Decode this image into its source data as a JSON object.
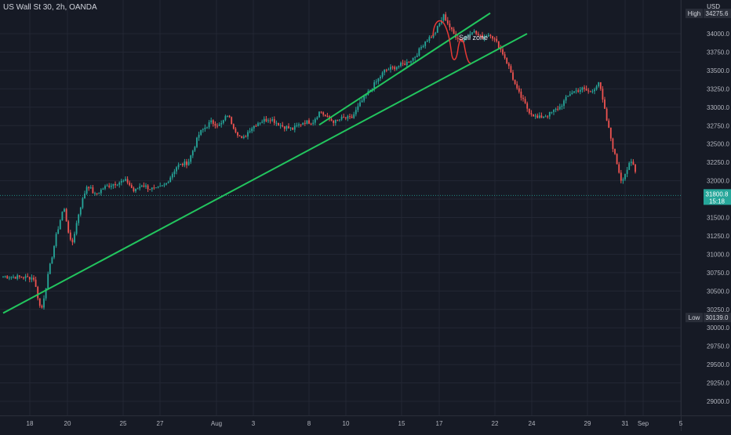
{
  "header": {
    "symbol_title": "US Wall St 30, 2h, OANDA",
    "currency": "USD"
  },
  "annotation": {
    "sell_zone_label": "Sell zone"
  },
  "chart_data": {
    "type": "candlestick",
    "title": "US Wall St 30, 2h, OANDA",
    "currency": "USD",
    "y_ticks": [
      29000,
      29250,
      29500,
      29750,
      30000,
      30250,
      30500,
      30750,
      31000,
      31250,
      31500,
      31750,
      32000,
      32250,
      32500,
      32750,
      33000,
      33250,
      33500,
      33750,
      34000
    ],
    "y_tick_labels": [
      "29000.0",
      "29250.0",
      "29500.0",
      "29750.0",
      "30000.0",
      "30250.0",
      "30500.0",
      "30750.0",
      "31000.0",
      "31250.0",
      "31500.0",
      "31750.0",
      "32000.0",
      "32250.0",
      "32500.0",
      "32750.0",
      "33000.0",
      "33250.0",
      "33500.0",
      "33750.0",
      "34000.0"
    ],
    "x_ticks": [
      "18",
      "20",
      "25",
      "27",
      "Aug",
      "3",
      "8",
      "10",
      "15",
      "17",
      "22",
      "24",
      "29",
      "31",
      "Sep",
      "5"
    ],
    "price_path": [
      [
        "18",
        30680
      ],
      [
        "18",
        30220
      ],
      [
        "18",
        30750
      ],
      [
        "18",
        31250
      ],
      [
        "18",
        31650
      ],
      [
        "20",
        31100
      ],
      [
        "20",
        31600
      ],
      [
        "20",
        31950
      ],
      [
        "20",
        31800
      ],
      [
        "20",
        31900
      ],
      [
        "20",
        31950
      ],
      [
        "20",
        31980
      ],
      [
        "25",
        32000
      ],
      [
        "25",
        31850
      ],
      [
        "25",
        31950
      ],
      [
        "25",
        31900
      ],
      [
        "25",
        31880
      ],
      [
        "27",
        31950
      ],
      [
        "27",
        32200
      ],
      [
        "27",
        32250
      ],
      [
        "27",
        32650
      ],
      [
        "27",
        32800
      ],
      [
        "Aug",
        32750
      ],
      [
        "Aug",
        32900
      ],
      [
        "Aug",
        32700
      ],
      [
        "Aug",
        32550
      ],
      [
        "Aug",
        32700
      ],
      [
        "3",
        32800
      ],
      [
        "3",
        32850
      ],
      [
        "3",
        32750
      ],
      [
        "3",
        32700
      ],
      [
        "3",
        32800
      ],
      [
        "8",
        32800
      ],
      [
        "8",
        32950
      ],
      [
        "8",
        32850
      ],
      [
        "8",
        32800
      ],
      [
        "8",
        32850
      ],
      [
        "10",
        32850
      ],
      [
        "10",
        33100
      ],
      [
        "10",
        33300
      ],
      [
        "10",
        33500
      ],
      [
        "10",
        33550
      ],
      [
        "15",
        33600
      ],
      [
        "15",
        33700
      ],
      [
        "15",
        33900
      ],
      [
        "15",
        34000
      ],
      [
        "17",
        34250
      ],
      [
        "17",
        34000
      ],
      [
        "17",
        33900
      ],
      [
        "17",
        34050
      ],
      [
        "17",
        33950
      ],
      [
        "17",
        34000
      ],
      [
        "22",
        33850
      ],
      [
        "22",
        33700
      ],
      [
        "22",
        33500
      ],
      [
        "22",
        33250
      ],
      [
        "22",
        33100
      ],
      [
        "22",
        32950
      ],
      [
        "24",
        32850
      ],
      [
        "24",
        32900
      ],
      [
        "24",
        33000
      ],
      [
        "24",
        33200
      ],
      [
        "24",
        33250
      ],
      [
        "29",
        33200
      ],
      [
        "29",
        33350
      ],
      [
        "29",
        32850
      ],
      [
        "29",
        32400
      ],
      [
        "29",
        32000
      ],
      [
        "31",
        32150
      ],
      [
        "31",
        32250
      ],
      [
        "31",
        32200
      ],
      [
        "31",
        31950
      ],
      [
        "31",
        31800
      ]
    ],
    "current_price": "31800.8",
    "current_time": "15:18",
    "high_label": "High",
    "high_price": "34275.6",
    "low_label": "Low",
    "low_price": "30139.0",
    "trendlines": [
      {
        "color": "#22c55e",
        "from": [
          "18",
          30200
        ],
        "to": [
          "24",
          34000
        ]
      },
      {
        "color": "#22c55e",
        "from": [
          "10",
          32760
        ],
        "to": [
          "22",
          34280
        ]
      }
    ],
    "colors": {
      "up": "#26a69a",
      "down": "#ef5350",
      "trendline": "#22c55e",
      "sketch": "#e53935"
    }
  }
}
